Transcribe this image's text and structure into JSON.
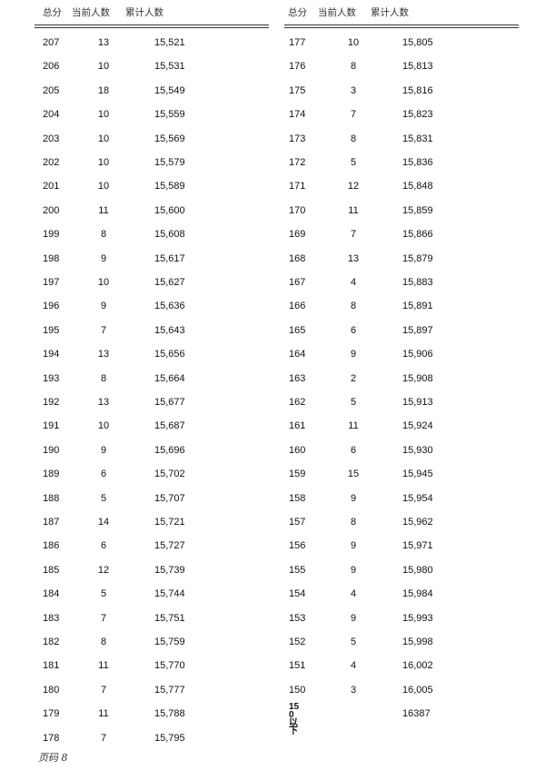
{
  "headers": [
    "总分",
    "当前人数",
    "累计人数"
  ],
  "left_rows": [
    [
      "207",
      "13",
      "15,521"
    ],
    [
      "206",
      "10",
      "15,531"
    ],
    [
      "205",
      "18",
      "15,549"
    ],
    [
      "204",
      "10",
      "15,559"
    ],
    [
      "203",
      "10",
      "15,569"
    ],
    [
      "202",
      "10",
      "15,579"
    ],
    [
      "201",
      "10",
      "15,589"
    ],
    [
      "200",
      "11",
      "15,600"
    ],
    [
      "199",
      "8",
      "15,608"
    ],
    [
      "198",
      "9",
      "15,617"
    ],
    [
      "197",
      "10",
      "15,627"
    ],
    [
      "196",
      "9",
      "15,636"
    ],
    [
      "195",
      "7",
      "15,643"
    ],
    [
      "194",
      "13",
      "15,656"
    ],
    [
      "193",
      "8",
      "15,664"
    ],
    [
      "192",
      "13",
      "15,677"
    ],
    [
      "191",
      "10",
      "15,687"
    ],
    [
      "190",
      "9",
      "15,696"
    ],
    [
      "189",
      "6",
      "15,702"
    ],
    [
      "188",
      "5",
      "15,707"
    ],
    [
      "187",
      "14",
      "15,721"
    ],
    [
      "186",
      "6",
      "15,727"
    ],
    [
      "185",
      "12",
      "15,739"
    ],
    [
      "184",
      "5",
      "15,744"
    ],
    [
      "183",
      "7",
      "15,751"
    ],
    [
      "182",
      "8",
      "15,759"
    ],
    [
      "181",
      "11",
      "15,770"
    ],
    [
      "180",
      "7",
      "15,777"
    ],
    [
      "179",
      "11",
      "15,788"
    ],
    [
      "178",
      "7",
      "15,795"
    ]
  ],
  "right_rows": [
    [
      "177",
      "10",
      "15,805"
    ],
    [
      "176",
      "8",
      "15,813"
    ],
    [
      "175",
      "3",
      "15,816"
    ],
    [
      "174",
      "7",
      "15,823"
    ],
    [
      "173",
      "8",
      "15,831"
    ],
    [
      "172",
      "5",
      "15,836"
    ],
    [
      "171",
      "12",
      "15,848"
    ],
    [
      "170",
      "11",
      "15,859"
    ],
    [
      "169",
      "7",
      "15,866"
    ],
    [
      "168",
      "13",
      "15,879"
    ],
    [
      "167",
      "4",
      "15,883"
    ],
    [
      "166",
      "8",
      "15,891"
    ],
    [
      "165",
      "6",
      "15,897"
    ],
    [
      "164",
      "9",
      "15,906"
    ],
    [
      "163",
      "2",
      "15,908"
    ],
    [
      "162",
      "5",
      "15,913"
    ],
    [
      "161",
      "11",
      "15,924"
    ],
    [
      "160",
      "6",
      "15,930"
    ],
    [
      "159",
      "15",
      "15,945"
    ],
    [
      "158",
      "9",
      "15,954"
    ],
    [
      "157",
      "8",
      "15,962"
    ],
    [
      "156",
      "9",
      "15,971"
    ],
    [
      "155",
      "9",
      "15,980"
    ],
    [
      "154",
      "4",
      "15,984"
    ],
    [
      "153",
      "9",
      "15,993"
    ],
    [
      "152",
      "5",
      "15,998"
    ],
    [
      "151",
      "4",
      "16,002"
    ],
    [
      "150",
      "3",
      "16,005"
    ],
    [
      "150以下",
      "",
      "16387"
    ]
  ],
  "footer": "页码 8"
}
